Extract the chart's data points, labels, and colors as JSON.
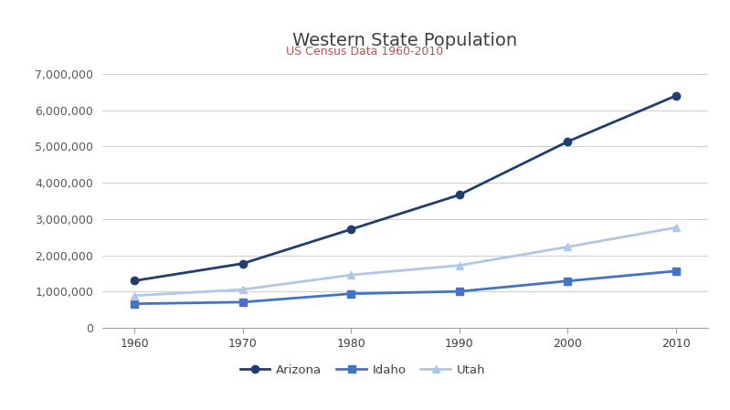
{
  "title": "Western State Population",
  "subtitle": "US Census Data 1960-2010",
  "title_color": "#404040",
  "subtitle_color": "#C0504D",
  "years": [
    1960,
    1970,
    1980,
    1990,
    2000,
    2010
  ],
  "series": [
    {
      "name": "Arizona",
      "values": [
        1302161,
        1775399,
        2718215,
        3665228,
        5130632,
        6392017
      ],
      "color": "#1F3F6E",
      "marker": "o",
      "markersize": 6,
      "linewidth": 2.0
    },
    {
      "name": "Idaho",
      "values": [
        667191,
        713008,
        943935,
        1006749,
        1293953,
        1567582
      ],
      "color": "#4472C4",
      "marker": "s",
      "markersize": 6,
      "linewidth": 2.0
    },
    {
      "name": "Utah",
      "values": [
        890627,
        1059273,
        1461037,
        1722850,
        2233169,
        2763885
      ],
      "color": "#AFC7E8",
      "marker": "^",
      "markersize": 6,
      "linewidth": 2.0
    }
  ],
  "ylim": [
    0,
    7000000
  ],
  "yticks": [
    0,
    1000000,
    2000000,
    3000000,
    4000000,
    5000000,
    6000000,
    7000000
  ],
  "xlim_left": 1957,
  "xlim_right": 2013,
  "bg_color": "#FFFFFF",
  "grid_color": "#D0D0D0",
  "title_fontsize": 14,
  "subtitle_fontsize": 9,
  "tick_fontsize": 9
}
